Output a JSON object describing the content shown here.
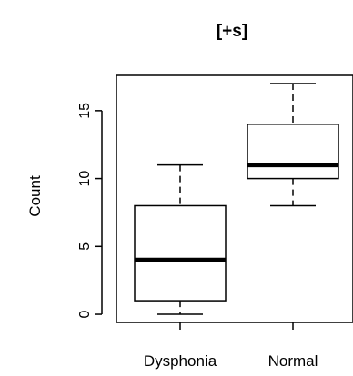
{
  "chart_data": {
    "type": "boxplot",
    "title": "[+s]",
    "xlabel": "",
    "ylabel": "Count",
    "categories": [
      "Dysphonia",
      "Normal"
    ],
    "y_ticks": [
      0,
      5,
      10,
      15
    ],
    "ylim": [
      -0.6,
      17.6
    ],
    "grid": false,
    "series": [
      {
        "category": "Dysphonia",
        "whisker_low": 0,
        "q1": 1,
        "median": 4,
        "q3": 8,
        "whisker_high": 11
      },
      {
        "category": "Normal",
        "whisker_low": 8,
        "q1": 10,
        "median": 11,
        "q3": 14,
        "whisker_high": 17
      }
    ]
  }
}
